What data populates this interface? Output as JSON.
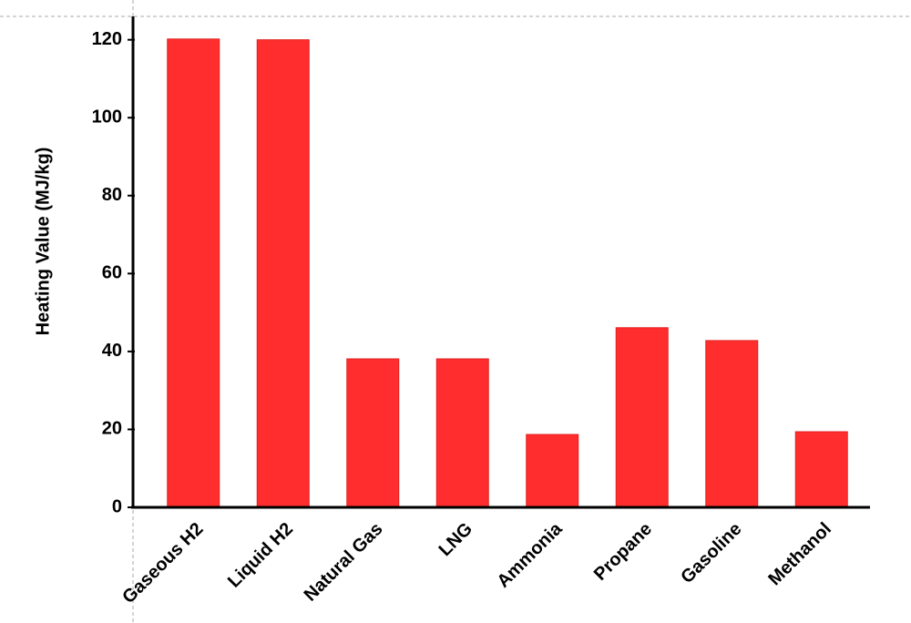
{
  "chart_data": {
    "type": "bar",
    "y_label": "Heating Value (MJ/kg)",
    "categories": [
      "Gaseous H2",
      "Liquid H2",
      "Natural Gas",
      "LNG",
      "Ammonia",
      "Propane",
      "Gasoline",
      "Methanol"
    ],
    "values": [
      120.2,
      120,
      38.1,
      38.1,
      18.7,
      46.1,
      42.8,
      19.4
    ],
    "color": "#ff2d2d",
    "ylim": [
      0,
      126
    ],
    "yticks": [
      0,
      20,
      40,
      60,
      80,
      100,
      120
    ],
    "grid": false
  }
}
